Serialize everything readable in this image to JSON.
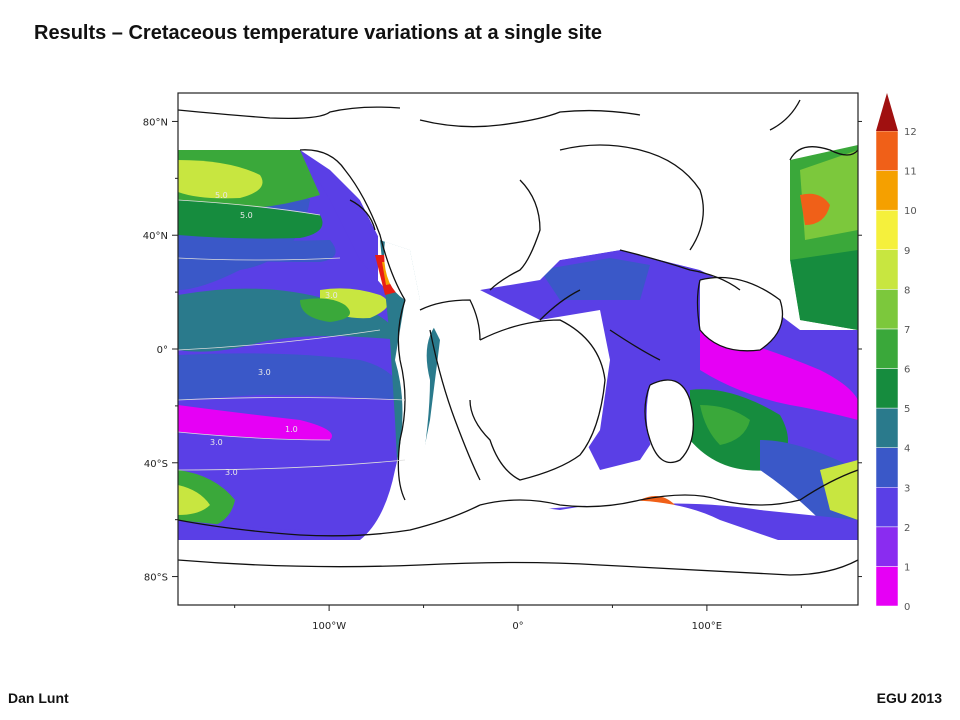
{
  "slide": {
    "title": "Results – Cretaceous temperature variations at a single site",
    "footer_left": "Dan Lunt",
    "footer_right": "EGU 2013"
  },
  "chart_data": {
    "type": "heatmap",
    "title": "",
    "xlabel": "",
    "ylabel": "",
    "x_ticks": [
      "100°W",
      "0°",
      "100°E"
    ],
    "x_tick_values": [
      -100,
      0,
      100
    ],
    "y_ticks": [
      "80°N",
      "40°N",
      "0°",
      "40°S",
      "80°S"
    ],
    "y_tick_values": [
      80,
      40,
      0,
      -40,
      -80
    ],
    "xlim": [
      -180,
      180
    ],
    "ylim": [
      -90,
      90
    ],
    "colorbar": {
      "ticks": [
        "0",
        "1",
        "2",
        "3",
        "4",
        "5",
        "6",
        "7",
        "8",
        "9",
        "10",
        "11",
        "12"
      ],
      "colors": [
        "#e600f5",
        "#8a2cf0",
        "#5a3fe6",
        "#3a58c8",
        "#2a7a8c",
        "#168c3e",
        "#3aa83a",
        "#7cc83c",
        "#c8e640",
        "#f5f03c",
        "#f5a000",
        "#f06018",
        "#e81e14",
        "#a01010"
      ]
    },
    "contour_labels": [
      "5.0",
      "5.0",
      "3.0",
      "3.0",
      "3.0",
      "1.0",
      "3.0"
    ]
  }
}
